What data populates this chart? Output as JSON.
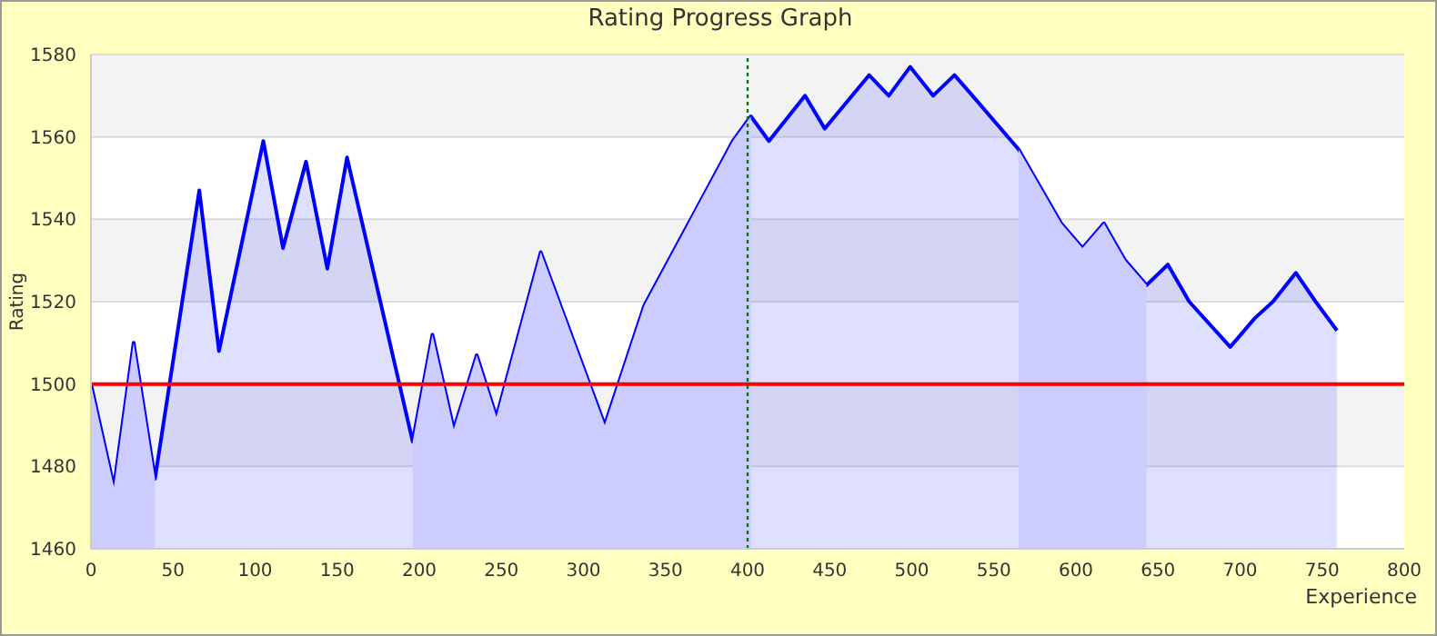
{
  "chart_data": {
    "type": "area",
    "title": "Rating Progress Graph",
    "xlabel": "Experience",
    "ylabel": "Rating",
    "x": [
      0,
      14,
      26,
      39,
      66,
      78,
      105,
      117,
      131,
      144,
      156,
      196,
      208,
      221,
      235,
      247,
      274,
      313,
      337,
      391,
      402,
      413,
      435,
      447,
      474,
      486,
      499,
      513,
      526,
      537,
      565,
      591,
      604,
      617,
      630,
      643,
      656,
      669,
      694,
      709,
      720,
      734,
      746,
      759
    ],
    "series": [
      {
        "color": "#ccccff",
        "values": [
          1500,
          1475,
          1510,
          1477,
          null,
          null,
          null,
          null,
          null,
          null,
          null,
          1486,
          1512,
          1489,
          1507,
          1492,
          1532,
          1490,
          1519,
          1559,
          1565,
          null,
          null,
          null,
          null,
          null,
          null,
          null,
          null,
          null,
          1557,
          1539,
          1533,
          1539,
          1530,
          1524,
          null,
          null,
          null,
          null,
          null,
          null,
          null,
          null
        ]
      },
      {
        "color": "#0000ff",
        "values": [
          1500,
          1475,
          1510,
          1477,
          1547,
          1508,
          1559,
          1533,
          1554,
          1528,
          1555,
          1486,
          1512,
          1489,
          1507,
          1492,
          1532,
          1490,
          1519,
          1559,
          1565,
          1559,
          1570,
          1562,
          1575,
          1570,
          1577,
          1570,
          1575,
          1570,
          1557,
          1539,
          1533,
          1539,
          1530,
          1524,
          1529,
          1520,
          1509,
          1516,
          1520,
          1527,
          1520,
          1513
        ]
      }
    ],
    "xlim": [
      0,
      800
    ],
    "xticks": [
      0,
      50,
      100,
      150,
      200,
      250,
      300,
      350,
      400,
      450,
      500,
      550,
      600,
      650,
      700,
      750,
      800
    ],
    "ylim": [
      1460,
      1580
    ],
    "yticks": [
      1460,
      1480,
      1500,
      1520,
      1540,
      1560,
      1580
    ],
    "grid": "y",
    "marker": "none",
    "line_style": "solid",
    "ref_lines": [
      {
        "axis": "y",
        "value": 1500,
        "color": "#ff0000",
        "line_style": "solid"
      },
      {
        "axis": "x",
        "value": 400,
        "color": "#008000",
        "line_style": "dotted"
      }
    ]
  }
}
